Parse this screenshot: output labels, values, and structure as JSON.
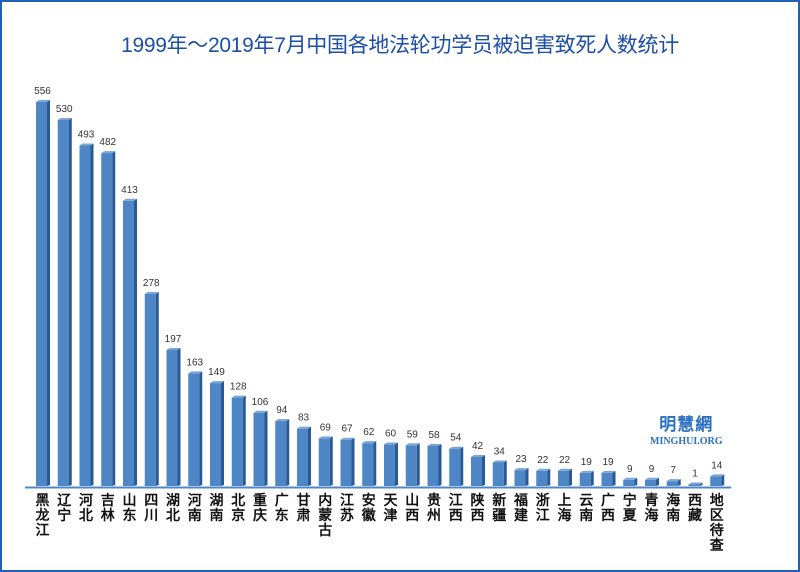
{
  "chart_data": {
    "type": "bar",
    "title": "1999年～2019年7月中国各地法轮功学员被迫害致死人数统计",
    "xlabel": "",
    "ylabel": "",
    "ylim": [
      0,
      556
    ],
    "grid": false,
    "legend": "none",
    "categories": [
      "黑龙江",
      "辽宁",
      "河北",
      "吉林",
      "山东",
      "四川",
      "湖北",
      "河南",
      "湖南",
      "北京",
      "重庆",
      "广东",
      "甘肃",
      "内蒙古",
      "江苏",
      "安徽",
      "天津",
      "山西",
      "贵州",
      "江西",
      "陕西",
      "新疆",
      "福建",
      "浙江",
      "上海",
      "云南",
      "广西",
      "宁夏",
      "青海",
      "海南",
      "西藏",
      "地区待查"
    ],
    "values": [
      556,
      530,
      493,
      482,
      413,
      278,
      197,
      163,
      149,
      128,
      106,
      94,
      83,
      69,
      67,
      62,
      60,
      59,
      58,
      54,
      42,
      34,
      23,
      22,
      22,
      19,
      19,
      9,
      9,
      7,
      1,
      14
    ],
    "bar_color": "#4f86c6",
    "bar_side_color": "#2a5a94",
    "axis_color": "#4f86c6"
  },
  "watermark": {
    "cn": "明慧網",
    "en": "MINGHUI.ORG",
    "color": "#2a6fc4"
  }
}
